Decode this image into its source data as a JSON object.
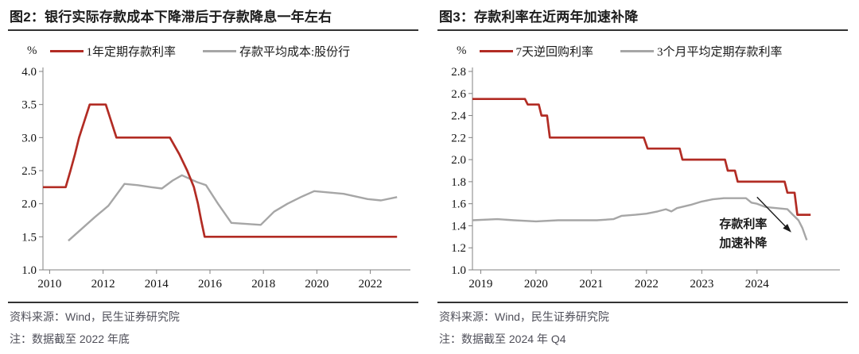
{
  "page": {
    "background": "#ffffff",
    "accent_red": "#b22c24",
    "line_gray": "#a6a6a6"
  },
  "chart_data": [
    {
      "id": "fig2",
      "type": "line",
      "title": "图2：银行实际存款成本下降滞后于存款降息一年左右",
      "unit": "%",
      "xlim": [
        2009.75,
        2023.5
      ],
      "ylim": [
        1.0,
        4.0
      ],
      "yticks": [
        1.0,
        1.5,
        2.0,
        2.5,
        3.0,
        3.5,
        4.0
      ],
      "xticks": [
        2010,
        2012,
        2014,
        2016,
        2018,
        2020,
        2022
      ],
      "grid": false,
      "legend_position": "top",
      "series": [
        {
          "name": "1年定期存款利率",
          "color": "#b22c24",
          "width": 2.7,
          "points": [
            [
              2009.75,
              2.25
            ],
            [
              2010.6,
              2.25
            ],
            [
              2010.78,
              2.5
            ],
            [
              2010.95,
              2.75
            ],
            [
              2011.1,
              3.0
            ],
            [
              2011.3,
              3.25
            ],
            [
              2011.5,
              3.5
            ],
            [
              2012.1,
              3.5
            ],
            [
              2012.3,
              3.25
            ],
            [
              2012.5,
              3.0
            ],
            [
              2014.5,
              3.0
            ],
            [
              2014.85,
              2.75
            ],
            [
              2015.15,
              2.5
            ],
            [
              2015.4,
              2.25
            ],
            [
              2015.55,
              2.0
            ],
            [
              2015.67,
              1.75
            ],
            [
              2015.8,
              1.5
            ],
            [
              2023.0,
              1.5
            ]
          ]
        },
        {
          "name": "存款平均成本:股份行",
          "color": "#a6a6a6",
          "width": 2.4,
          "points": [
            [
              2010.7,
              1.44
            ],
            [
              2011.2,
              1.62
            ],
            [
              2011.7,
              1.8
            ],
            [
              2012.2,
              1.97
            ],
            [
              2012.8,
              2.3
            ],
            [
              2013.3,
              2.28
            ],
            [
              2013.8,
              2.25
            ],
            [
              2014.2,
              2.23
            ],
            [
              2014.6,
              2.35
            ],
            [
              2014.95,
              2.43
            ],
            [
              2015.5,
              2.33
            ],
            [
              2015.85,
              2.28
            ],
            [
              2016.3,
              2.0
            ],
            [
              2016.8,
              1.71
            ],
            [
              2017.9,
              1.68
            ],
            [
              2018.4,
              1.88
            ],
            [
              2018.9,
              2.0
            ],
            [
              2019.4,
              2.1
            ],
            [
              2019.9,
              2.19
            ],
            [
              2021.0,
              2.15
            ],
            [
              2021.9,
              2.07
            ],
            [
              2022.4,
              2.05
            ],
            [
              2023.0,
              2.1
            ]
          ]
        }
      ],
      "source": "资料来源：Wind，民生证券研究院",
      "note": "注：数据截至 2022 年底"
    },
    {
      "id": "fig3",
      "type": "line",
      "title": "图3：存款利率在近两年加速补降",
      "unit": "%",
      "xlim": [
        2018.85,
        2025.5
      ],
      "ylim": [
        1.0,
        2.8
      ],
      "yticks": [
        1.0,
        1.2,
        1.4,
        1.6,
        1.8,
        2.0,
        2.2,
        2.4,
        2.6,
        2.8
      ],
      "xticks": [
        2019,
        2020,
        2021,
        2022,
        2023,
        2024
      ],
      "grid": false,
      "legend_position": "top",
      "series": [
        {
          "name": "7天逆回购利率",
          "color": "#b22c24",
          "width": 2.7,
          "points": [
            [
              2018.85,
              2.55
            ],
            [
              2019.8,
              2.55
            ],
            [
              2019.85,
              2.5
            ],
            [
              2020.05,
              2.5
            ],
            [
              2020.1,
              2.4
            ],
            [
              2020.2,
              2.4
            ],
            [
              2020.25,
              2.2
            ],
            [
              2021.95,
              2.2
            ],
            [
              2022.02,
              2.1
            ],
            [
              2022.6,
              2.1
            ],
            [
              2022.65,
              2.0
            ],
            [
              2023.42,
              2.0
            ],
            [
              2023.47,
              1.9
            ],
            [
              2023.6,
              1.9
            ],
            [
              2023.65,
              1.8
            ],
            [
              2024.5,
              1.8
            ],
            [
              2024.55,
              1.7
            ],
            [
              2024.68,
              1.7
            ],
            [
              2024.73,
              1.5
            ],
            [
              2024.97,
              1.5
            ]
          ]
        },
        {
          "name": "3个月平均定期存款利率",
          "color": "#a6a6a6",
          "width": 2.4,
          "points": [
            [
              2018.85,
              1.45
            ],
            [
              2019.3,
              1.46
            ],
            [
              2019.6,
              1.45
            ],
            [
              2020.0,
              1.44
            ],
            [
              2020.4,
              1.45
            ],
            [
              2020.8,
              1.45
            ],
            [
              2021.1,
              1.45
            ],
            [
              2021.4,
              1.46
            ],
            [
              2021.55,
              1.49
            ],
            [
              2021.8,
              1.5
            ],
            [
              2022.0,
              1.51
            ],
            [
              2022.2,
              1.53
            ],
            [
              2022.35,
              1.55
            ],
            [
              2022.45,
              1.53
            ],
            [
              2022.55,
              1.56
            ],
            [
              2022.8,
              1.59
            ],
            [
              2023.0,
              1.62
            ],
            [
              2023.2,
              1.64
            ],
            [
              2023.4,
              1.65
            ],
            [
              2023.8,
              1.65
            ],
            [
              2023.9,
              1.61
            ],
            [
              2024.0,
              1.6
            ],
            [
              2024.15,
              1.57
            ],
            [
              2024.35,
              1.56
            ],
            [
              2024.55,
              1.55
            ],
            [
              2024.65,
              1.5
            ],
            [
              2024.75,
              1.45
            ],
            [
              2024.82,
              1.38
            ],
            [
              2024.9,
              1.27
            ]
          ]
        }
      ],
      "annotation": {
        "lines": [
          "存款利率",
          "加速补降"
        ],
        "text_x": 2023.75,
        "text_y1": 1.38,
        "text_y2": 1.21,
        "arrow": {
          "x1": 2024.0,
          "y1": 1.66,
          "x2": 2024.62,
          "y2": 1.34
        },
        "color": "#1a1a1a"
      },
      "source": "资料来源：Wind，民生证券研究院",
      "note": "注：数据截至 2024 年 Q4"
    }
  ]
}
